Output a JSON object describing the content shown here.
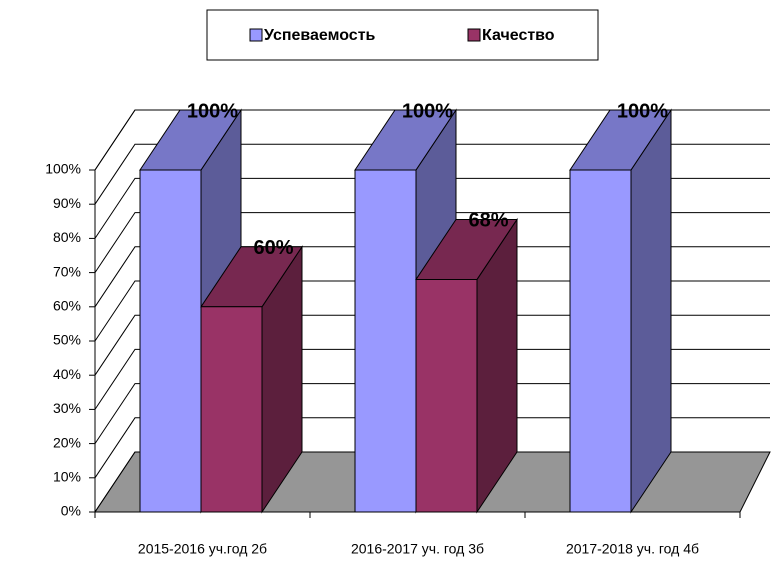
{
  "chart_data": {
    "type": "bar3d",
    "categories": [
      "2015-2016 уч.год 2б",
      "2016-2017 уч. год 3б",
      "2017-2018 уч. год 4б"
    ],
    "series": [
      {
        "name": "Успеваемость",
        "color": "#9999ff",
        "values": [
          100,
          100,
          100
        ],
        "value_labels": [
          "100%",
          "100%",
          "100%"
        ]
      },
      {
        "name": "Качество",
        "color": "#993366",
        "values": [
          60,
          68,
          null
        ],
        "value_labels": [
          "60%",
          "68%",
          null
        ]
      }
    ],
    "ylim": [
      0,
      100
    ],
    "yticks": [
      {
        "value": 0,
        "label": "0%"
      },
      {
        "value": 10,
        "label": "10%"
      },
      {
        "value": 20,
        "label": "20%"
      },
      {
        "value": 30,
        "label": "30%"
      },
      {
        "value": 40,
        "label": "40%"
      },
      {
        "value": 50,
        "label": "50%"
      },
      {
        "value": 60,
        "label": "60%"
      },
      {
        "value": 70,
        "label": "70%"
      },
      {
        "value": 80,
        "label": "80%"
      },
      {
        "value": 90,
        "label": "90%"
      },
      {
        "value": 100,
        "label": "100%"
      }
    ],
    "grid": true,
    "legend": "top"
  }
}
